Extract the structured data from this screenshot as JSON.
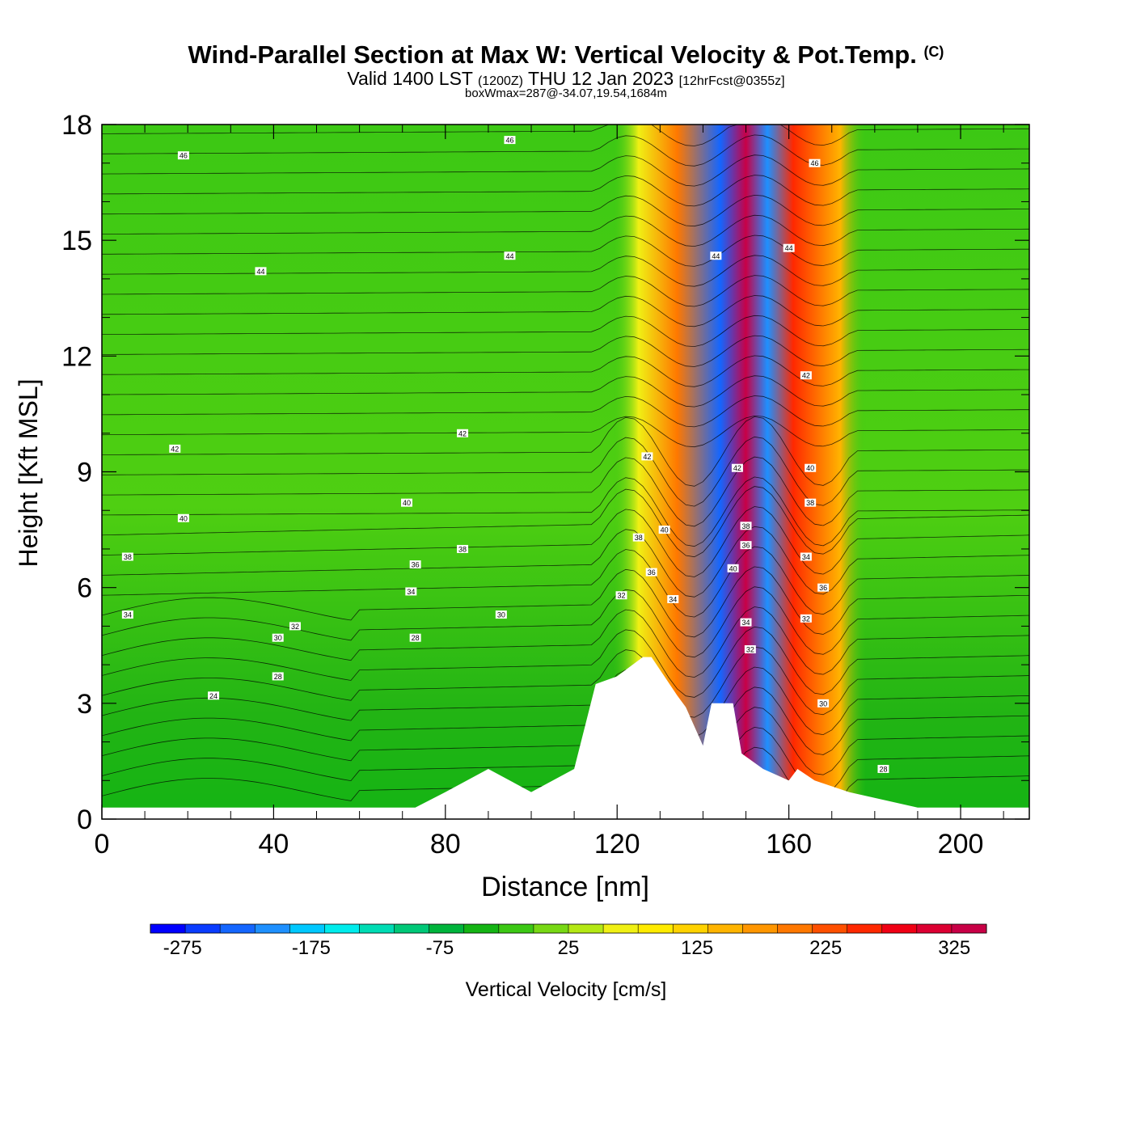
{
  "header": {
    "title": "Wind-Parallel Section at Max W: Vertical Velocity & Pot.Temp.",
    "copyright": "(C)",
    "valid_main": "Valid 1400 LST",
    "valid_utc": "(1200Z)",
    "valid_date": "THU 12 Jan 2023",
    "forecast_info": "[12hrFcst@0355z]",
    "max_info": "boxWmax=287@-34.07,19.54,1684m"
  },
  "colorbar": {
    "label": "Vertical Velocity [cm/s]",
    "tick_labels": [
      "-275",
      "-175",
      "-75",
      "25",
      "125",
      "225",
      "325"
    ],
    "tick_values": [
      -275,
      -175,
      -75,
      25,
      125,
      225,
      325
    ],
    "min": -300,
    "max": 350,
    "step": 25,
    "colors": [
      "#0000ff",
      "#0a3cff",
      "#1466ff",
      "#1e90ff",
      "#00c8ff",
      "#00ecec",
      "#00dcb4",
      "#00c878",
      "#00b43c",
      "#14b414",
      "#3cc814",
      "#78d814",
      "#b4e814",
      "#f0f014",
      "#ffeb00",
      "#ffd200",
      "#ffb400",
      "#ff9600",
      "#ff7800",
      "#ff5000",
      "#ff2800",
      "#f00014",
      "#dc0032",
      "#c80046"
    ]
  },
  "chart_data": {
    "type": "heatmap",
    "xlabel": "Distance [nm]",
    "ylabel": "Height [Kft MSL]",
    "xlim": [
      0,
      216
    ],
    "ylim": [
      0,
      18
    ],
    "x_ticks": [
      0,
      40,
      80,
      120,
      160,
      200
    ],
    "y_ticks": [
      0,
      3,
      6,
      9,
      12,
      15,
      18
    ],
    "field": "vertical velocity (cm/s) shaded",
    "contours": "potential temperature (deg) black lines",
    "updraft_bands": [
      {
        "x": 125,
        "w": 40,
        "note": "weak updraft"
      },
      {
        "x": 134,
        "w": 160,
        "note": "updraft"
      },
      {
        "x": 144,
        "w": -250,
        "note": "downdraft"
      },
      {
        "x": 150,
        "w": 287,
        "note": "max updraft"
      },
      {
        "x": 155,
        "w": -220,
        "note": "downdraft"
      },
      {
        "x": 161,
        "w": 200,
        "note": "updraft"
      },
      {
        "x": 172,
        "w": 120,
        "note": "updraft"
      }
    ],
    "terrain_kft": [
      [
        0,
        0.3
      ],
      [
        73,
        0.3
      ],
      [
        80,
        0.7
      ],
      [
        90,
        1.3
      ],
      [
        100,
        0.7
      ],
      [
        110,
        1.3
      ],
      [
        115,
        3.5
      ],
      [
        120,
        3.7
      ],
      [
        126,
        4.2
      ],
      [
        128,
        4.2
      ],
      [
        134,
        3.2
      ],
      [
        136,
        2.9
      ],
      [
        140,
        1.9
      ],
      [
        142,
        3.0
      ],
      [
        147,
        3.0
      ],
      [
        149,
        1.7
      ],
      [
        154,
        1.3
      ],
      [
        160,
        1.0
      ],
      [
        162,
        1.3
      ],
      [
        166,
        1.0
      ],
      [
        174,
        0.7
      ],
      [
        190,
        0.3
      ],
      [
        216,
        0.3
      ]
    ],
    "contour_labels": [
      {
        "text": "46",
        "x": 19,
        "y": 17.2
      },
      {
        "text": "46",
        "x": 95,
        "y": 17.6
      },
      {
        "text": "46",
        "x": 166,
        "y": 17.0
      },
      {
        "text": "44",
        "x": 37,
        "y": 14.2
      },
      {
        "text": "44",
        "x": 95,
        "y": 14.6
      },
      {
        "text": "44",
        "x": 143,
        "y": 14.6
      },
      {
        "text": "44",
        "x": 160,
        "y": 14.8
      },
      {
        "text": "42",
        "x": 17,
        "y": 9.6
      },
      {
        "text": "42",
        "x": 84,
        "y": 10.0
      },
      {
        "text": "42",
        "x": 127,
        "y": 9.4
      },
      {
        "text": "42",
        "x": 148,
        "y": 9.1
      },
      {
        "text": "42",
        "x": 164,
        "y": 11.5
      },
      {
        "text": "40",
        "x": 19,
        "y": 7.8
      },
      {
        "text": "40",
        "x": 71,
        "y": 8.2
      },
      {
        "text": "40",
        "x": 131,
        "y": 7.5
      },
      {
        "text": "40",
        "x": 147,
        "y": 6.5
      },
      {
        "text": "40",
        "x": 165,
        "y": 9.1
      },
      {
        "text": "38",
        "x": 6,
        "y": 6.8
      },
      {
        "text": "38",
        "x": 84,
        "y": 7.0
      },
      {
        "text": "38",
        "x": 125,
        "y": 7.3
      },
      {
        "text": "38",
        "x": 150,
        "y": 7.6
      },
      {
        "text": "38",
        "x": 165,
        "y": 8.2
      },
      {
        "text": "36",
        "x": 73,
        "y": 6.6
      },
      {
        "text": "36",
        "x": 128,
        "y": 6.4
      },
      {
        "text": "36",
        "x": 150,
        "y": 7.1
      },
      {
        "text": "36",
        "x": 168,
        "y": 6.0
      },
      {
        "text": "34",
        "x": 6,
        "y": 5.3
      },
      {
        "text": "34",
        "x": 72,
        "y": 5.9
      },
      {
        "text": "34",
        "x": 133,
        "y": 5.7
      },
      {
        "text": "34",
        "x": 164,
        "y": 6.8
      },
      {
        "text": "34",
        "x": 150,
        "y": 5.1
      },
      {
        "text": "32",
        "x": 45,
        "y": 5.0
      },
      {
        "text": "32",
        "x": 121,
        "y": 5.8
      },
      {
        "text": "32",
        "x": 151,
        "y": 4.4
      },
      {
        "text": "32",
        "x": 164,
        "y": 5.2
      },
      {
        "text": "30",
        "x": 41,
        "y": 4.7
      },
      {
        "text": "30",
        "x": 93,
        "y": 5.3
      },
      {
        "text": "30",
        "x": 168,
        "y": 3.0
      },
      {
        "text": "28",
        "x": 41,
        "y": 3.7
      },
      {
        "text": "28",
        "x": 73,
        "y": 4.7
      },
      {
        "text": "28",
        "x": 182,
        "y": 1.3
      },
      {
        "text": "24",
        "x": 26,
        "y": 3.2
      }
    ]
  }
}
